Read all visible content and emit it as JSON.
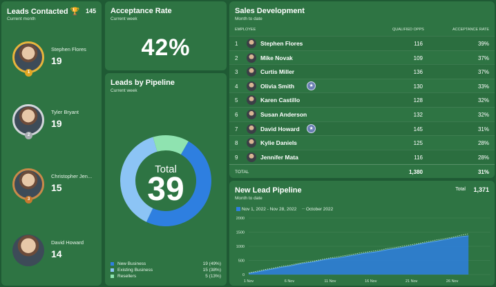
{
  "leads_contacted": {
    "title": "Leads Contacted 🏆",
    "subtitle": "Current month",
    "count": "145",
    "people": [
      {
        "name": "Stephen Flores",
        "value": "19",
        "rank": "1",
        "ring": "gold"
      },
      {
        "name": "Tyler Bryant",
        "value": "19",
        "rank": "2",
        "ring": "silver"
      },
      {
        "name": "Christopher Jen...",
        "value": "15",
        "rank": "3",
        "ring": "bronze"
      },
      {
        "name": "David Howard",
        "value": "14",
        "rank": "",
        "ring": "none"
      }
    ]
  },
  "acceptance_rate": {
    "title": "Acceptance Rate",
    "subtitle": "Current week",
    "value": "42%"
  },
  "leads_by_pipeline": {
    "title": "Leads by Pipeline",
    "subtitle": "Current week",
    "center_label": "Total",
    "center_value": "39",
    "legend": [
      {
        "name": "New Business",
        "value": "19 (49%)",
        "color": "#2e7fe0"
      },
      {
        "name": "Existing Business",
        "value": "15 (38%)",
        "color": "#8cc4f5"
      },
      {
        "name": "Resellers",
        "value": "5 (13%)",
        "color": "#8fe3b0"
      }
    ]
  },
  "sales_development": {
    "title": "Sales Development",
    "subtitle": "Month to date",
    "headers": {
      "employee": "EMPLOYEE",
      "opps": "QUALIFIED OPPS",
      "rate": "ACCEPTANCE RATE"
    },
    "rows": [
      {
        "rank": "1",
        "name": "Stephen Flores",
        "opps": "116",
        "rate": "39%",
        "badge": ""
      },
      {
        "rank": "2",
        "name": "Mike Novak",
        "opps": "109",
        "rate": "37%",
        "badge": ""
      },
      {
        "rank": "3",
        "name": "Curtis Miller",
        "opps": "136",
        "rate": "37%",
        "badge": ""
      },
      {
        "rank": "4",
        "name": "Olivia Smith",
        "opps": "130",
        "rate": "33%",
        "badge": "★"
      },
      {
        "rank": "5",
        "name": "Karen Castillo",
        "opps": "128",
        "rate": "32%",
        "badge": ""
      },
      {
        "rank": "6",
        "name": "Susan Anderson",
        "opps": "132",
        "rate": "32%",
        "badge": ""
      },
      {
        "rank": "7",
        "name": "David Howard",
        "opps": "145",
        "rate": "31%",
        "badge": "★"
      },
      {
        "rank": "8",
        "name": "Kylie Daniels",
        "opps": "125",
        "rate": "28%",
        "badge": ""
      },
      {
        "rank": "9",
        "name": "Jennifer Mata",
        "opps": "116",
        "rate": "28%",
        "badge": ""
      }
    ],
    "total": {
      "label": "TOTAL",
      "opps": "1,380",
      "rate": "31%"
    }
  },
  "new_lead_pipeline": {
    "title": "New Lead Pipeline",
    "subtitle": "Month to date",
    "total_label": "Total",
    "total": "1,371",
    "legend_current": "Nov 1, 2022 - Nov 28, 2022",
    "legend_previous": "October 2022",
    "colors": {
      "current": "#2e7fe0",
      "previous": "#bfe3c8"
    }
  },
  "chart_data": [
    {
      "type": "pie",
      "title": "Leads by Pipeline",
      "categories": [
        "New Business",
        "Existing Business",
        "Resellers"
      ],
      "values": [
        19,
        15,
        5
      ]
    },
    {
      "type": "area",
      "title": "New Lead Pipeline",
      "xlabel": "",
      "ylabel": "",
      "ylim": [
        0,
        2000
      ],
      "x_ticks": [
        "1 Nov",
        "6 Nov",
        "11 Nov",
        "16 Nov",
        "21 Nov",
        "26 Nov"
      ],
      "y_ticks": [
        0,
        500,
        1000,
        1500,
        2000
      ],
      "x": [
        1,
        2,
        3,
        4,
        5,
        6,
        7,
        8,
        9,
        10,
        11,
        12,
        13,
        14,
        15,
        16,
        17,
        18,
        19,
        20,
        21,
        22,
        23,
        24,
        25,
        26,
        27,
        28
      ],
      "series": [
        {
          "name": "Nov 1, 2022 - Nov 28, 2022",
          "values": [
            40,
            90,
            150,
            200,
            260,
            300,
            360,
            410,
            450,
            510,
            560,
            590,
            640,
            690,
            740,
            780,
            820,
            880,
            920,
            970,
            1020,
            1080,
            1130,
            1180,
            1230,
            1290,
            1340,
            1371
          ]
        },
        {
          "name": "October 2022",
          "values": [
            60,
            120,
            180,
            230,
            290,
            330,
            390,
            440,
            480,
            540,
            590,
            630,
            680,
            730,
            780,
            820,
            860,
            920,
            960,
            1010,
            1060,
            1110,
            1170,
            1220,
            1270,
            1320,
            1390,
            1440
          ]
        }
      ]
    }
  ]
}
